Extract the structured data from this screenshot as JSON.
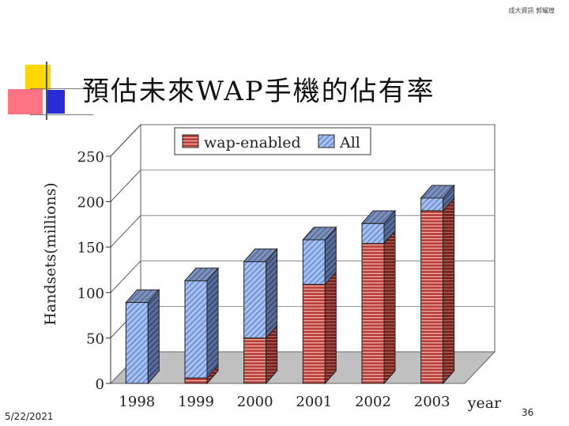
{
  "slide": {
    "title": "預估未來WAP手機的佔有率",
    "header_credit": "成大資訊 郭耀煌",
    "footer_date": "5/22/2021",
    "page_number": "36"
  },
  "colors": {
    "wap_front": "#c0504d",
    "all_front": "#93b3e8",
    "wall": "#ffffff",
    "floor": "#c0c0c0",
    "deco_yellow": "#ffd700",
    "deco_red": "#ff5a6e",
    "deco_blue": "#2b2bd6"
  },
  "chart_data": {
    "type": "bar",
    "subtype": "3d-stacked",
    "categories": [
      "1998",
      "1999",
      "2000",
      "2001",
      "2002",
      "2003"
    ],
    "series": [
      {
        "name": "wap-enabled",
        "values": [
          0,
          6,
          50,
          109,
          154,
          190
        ]
      },
      {
        "name": "All",
        "values": [
          89,
          107,
          84,
          49,
          22,
          14
        ]
      }
    ],
    "xlabel": "year",
    "ylabel": "Handsets(millions)",
    "ylim": [
      0,
      250
    ],
    "yticks": [
      0,
      50,
      100,
      150,
      200,
      250
    ],
    "legend_position": "top-center",
    "grid": true
  }
}
